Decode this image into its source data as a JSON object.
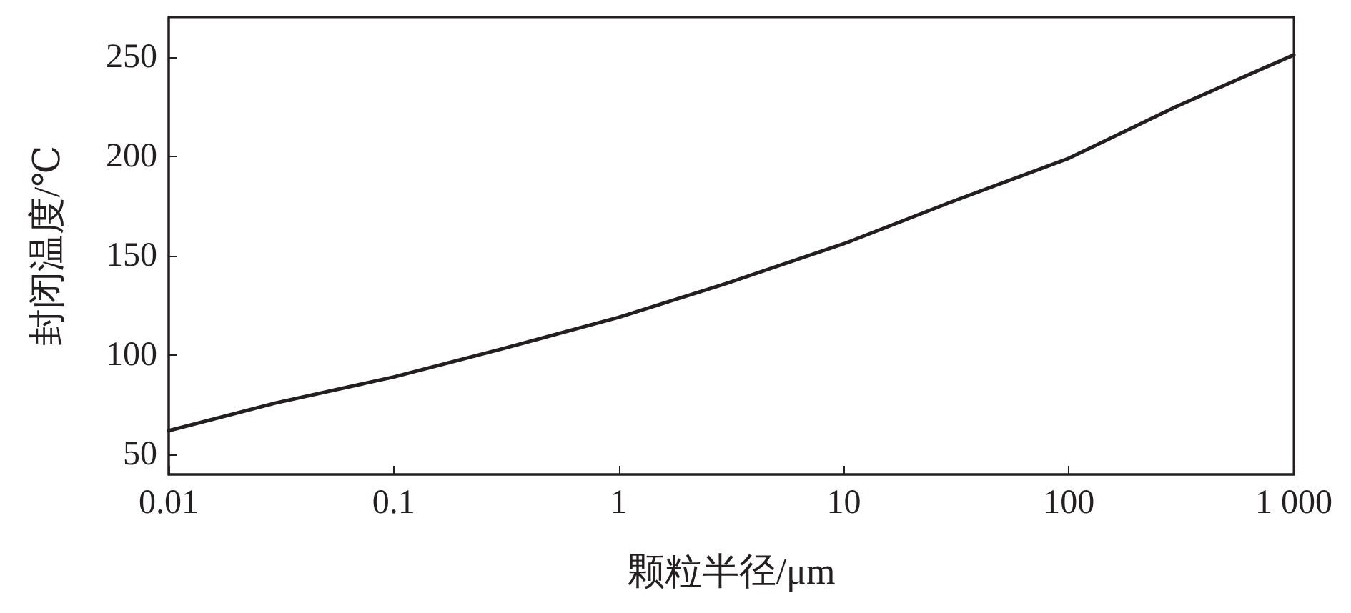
{
  "chart_data": {
    "type": "line",
    "xlabel": "颗粒半径/μm",
    "ylabel": "封闭温度/℃",
    "log": "x",
    "grid": false,
    "marker": "none",
    "line_style": "solid",
    "x": [
      0.01,
      0.03,
      0.1,
      0.3,
      1,
      3,
      10,
      30,
      100,
      300,
      1000
    ],
    "series": [
      {
        "color": "#231f20",
        "values": [
          62,
          76,
          89,
          103,
          119,
          136,
          156,
          177,
          199,
          225,
          251
        ]
      }
    ],
    "xlim": [
      0.01,
      1000
    ],
    "xticks": [
      0.01,
      0.1,
      1,
      10,
      100,
      {
        "value": 1000,
        "label": "1 000"
      }
    ],
    "ylim": [
      40,
      270
    ],
    "yticks": [
      50,
      100,
      150,
      200,
      250
    ]
  }
}
